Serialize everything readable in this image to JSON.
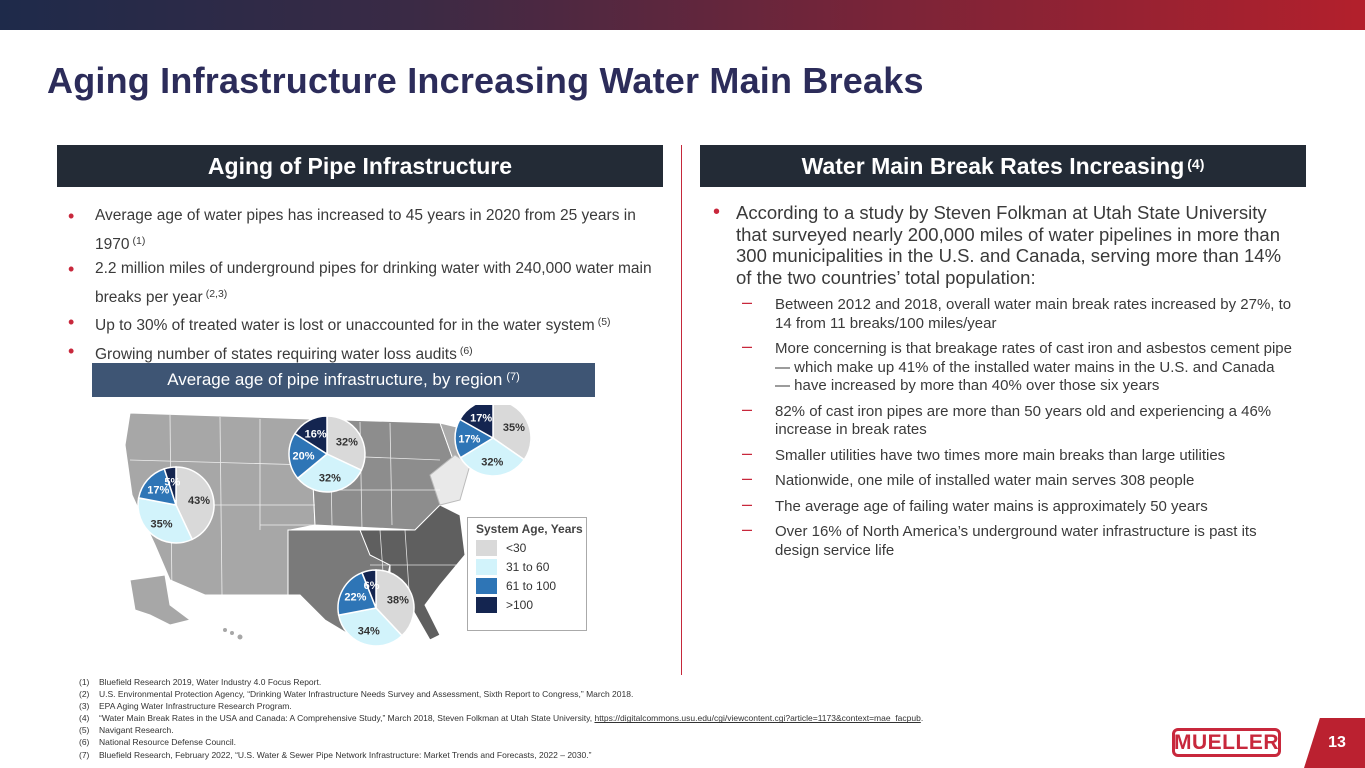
{
  "title": "Aging Infrastructure Increasing Water Main Breaks",
  "left_header": "Aging of Pipe Infrastructure",
  "right_header": {
    "text": "Water Main Break Rates Increasing",
    "ref": "(4)"
  },
  "left_bullets": [
    {
      "text": "Average age of water pipes has increased to 45 years in 2020 from 25 years in 1970",
      "ref": "(1)"
    },
    {
      "text": "2.2 million miles of underground pipes for drinking water with 240,000 water main breaks per year",
      "ref": "(2,3)"
    },
    {
      "text": "Up to 30% of treated water is lost or unaccounted for in the water system",
      "ref": "(5)"
    },
    {
      "text": "Growing number of states requiring water loss audits",
      "ref": "(6)"
    }
  ],
  "map_caption": {
    "text": "Average age of pipe infrastructure, by region",
    "ref": "(7)"
  },
  "legend": {
    "title": "System Age, Years",
    "items": [
      {
        "label": "<30",
        "color": "#d9d9d9"
      },
      {
        "label": "31 to 60",
        "color": "#d2f3fb"
      },
      {
        "label": "61 to 100",
        "color": "#2e75b6"
      },
      {
        "label": ">100",
        "color": "#142550"
      }
    ]
  },
  "chart_data": [
    {
      "type": "pie",
      "region": "West",
      "labels": [
        "<30",
        "31 to 60",
        "61 to 100",
        ">100"
      ],
      "values": [
        43,
        35,
        17,
        5
      ]
    },
    {
      "type": "pie",
      "region": "Midwest",
      "labels": [
        "<30",
        "31 to 60",
        "61 to 100",
        ">100"
      ],
      "values": [
        32,
        32,
        20,
        16
      ]
    },
    {
      "type": "pie",
      "region": "Northeast",
      "labels": [
        "<30",
        "31 to 60",
        "61 to 100",
        ">100"
      ],
      "values": [
        35,
        32,
        17,
        17
      ]
    },
    {
      "type": "pie",
      "region": "South",
      "labels": [
        "<30",
        "31 to 60",
        "61 to 100",
        ">100"
      ],
      "values": [
        38,
        34,
        22,
        6
      ]
    }
  ],
  "right_main": "According to a study by Steven Folkman at Utah State University that surveyed nearly 200,000 miles of water pipelines in more than 300 municipalities in the U.S. and Canada, serving more than 14% of the two countries’ total population:",
  "right_subs": [
    "Between 2012 and 2018, overall water main break rates increased by 27%, to 14 from 11 breaks/100 miles/year",
    "More concerning is that breakage rates of cast iron and asbestos cement pipe — which make up 41% of the installed water mains in the U.S. and Canada — have increased by more than 40% over those six years",
    "82% of cast iron pipes are more than 50 years old and experiencing a 46% increase in break rates",
    "Smaller utilities have two times more main breaks than large utilities",
    "Nationwide, one mile of installed water main serves 308 people",
    "The average age of failing water mains is approximately 50 years",
    "Over 16% of North America’s underground water infrastructure is past its design service life"
  ],
  "footnotes": [
    {
      "n": "(1)",
      "text": "Bluefield Research 2019, Water Industry 4.0 Focus Report."
    },
    {
      "n": "(2)",
      "text": "U.S. Environmental Protection Agency, “Drinking Water Infrastructure Needs Survey and Assessment, Sixth Report to Congress,” March 2018."
    },
    {
      "n": "(3)",
      "text": "EPA Aging Water Infrastructure Research Program."
    },
    {
      "n": "(4)",
      "text": "“Water Main Break Rates in the USA and Canada:  A Comprehensive Study,” March 2018, Steven Folkman at Utah State University,",
      "link": "https://digitalcommons.usu.edu/cgi/viewcontent.cgi?article=1173&context=mae_facpub",
      "tail": "."
    },
    {
      "n": "(5)",
      "text": "Navigant Research."
    },
    {
      "n": "(6)",
      "text": "National Resource Defense Council."
    },
    {
      "n": "(7)",
      "text": "Bluefield Research, February 2022, “U.S. Water & Sewer Pipe Network Infrastructure: Market Trends and Forecasts, 2022 – 2030.”"
    }
  ],
  "logo_text": "MUELLER",
  "page_number": "13"
}
